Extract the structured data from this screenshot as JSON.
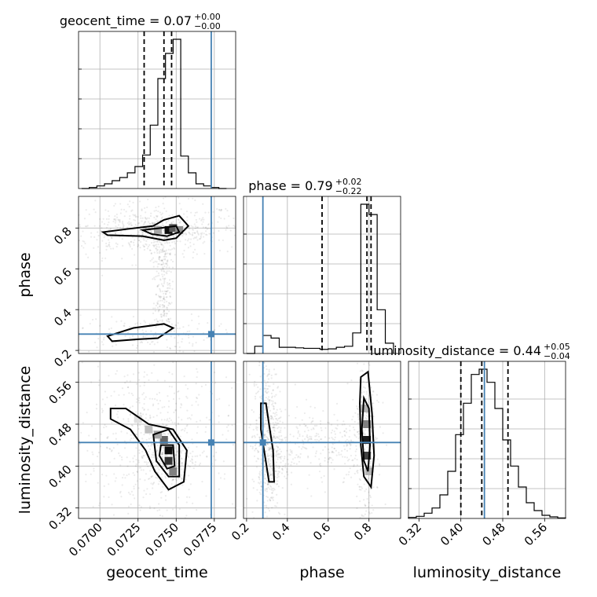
{
  "chart_data": {
    "type": "corner",
    "parameters": [
      "geocent_time",
      "phase",
      "luminosity_distance"
    ],
    "titles": [
      {
        "param": "geocent_time",
        "text": "geocent_time = 0.07",
        "sup": "+0.00",
        "sub": "−0.00"
      },
      {
        "param": "phase",
        "text": "phase = 0.79",
        "sup": "+0.02",
        "sub": "−0.22"
      },
      {
        "param": "luminosity_distance",
        "text": "luminosity_distance = 0.44",
        "sup": "+0.05",
        "sub": "−0.04"
      }
    ],
    "axes": {
      "geocent_time": {
        "range": [
          0.0686,
          0.0789
        ],
        "ticks": [
          0.07,
          0.0725,
          0.075,
          0.0775
        ],
        "tick_labels": [
          "0.0700",
          "0.0725",
          "0.0750",
          "0.0775"
        ]
      },
      "phase": {
        "range": [
          0.185,
          0.955
        ],
        "ticks": [
          0.2,
          0.4,
          0.6,
          0.8
        ],
        "tick_labels": [
          "0.2",
          "0.4",
          "0.6",
          "0.8"
        ]
      },
      "luminosity_distance": {
        "range": [
          0.3,
          0.6
        ],
        "ticks": [
          0.32,
          0.4,
          0.48,
          0.56
        ],
        "tick_labels": [
          "0.32",
          "0.40",
          "0.48",
          "0.56"
        ]
      }
    },
    "truth": {
      "geocent_time": 0.0773,
      "phase": 0.28,
      "luminosity_distance": 0.445
    },
    "quantiles": {
      "geocent_time": [
        0.0729,
        0.0742,
        0.0747
      ],
      "phase": [
        0.57,
        0.79,
        0.81
      ],
      "luminosity_distance": [
        0.4,
        0.44,
        0.49
      ]
    },
    "hist_1d": {
      "geocent_time": {
        "edges": [
          0.0688,
          0.0693,
          0.0698,
          0.0703,
          0.0708,
          0.0713,
          0.0718,
          0.0723,
          0.0728,
          0.0733,
          0.0738,
          0.0743,
          0.0748,
          0.0753,
          0.0758,
          0.0763,
          0.0768,
          0.0773,
          0.0778,
          0.0783
        ],
        "counts": [
          0,
          2,
          5,
          9,
          15,
          21,
          30,
          42,
          64,
          121,
          210,
          258,
          285,
          62,
          30,
          9,
          5,
          2,
          0
        ]
      },
      "phase": {
        "edges": [
          0.2,
          0.24,
          0.28,
          0.32,
          0.36,
          0.4,
          0.44,
          0.48,
          0.52,
          0.56,
          0.6,
          0.64,
          0.68,
          0.72,
          0.76,
          0.8,
          0.84,
          0.88,
          0.92
        ],
        "counts": [
          0,
          14,
          35,
          30,
          12,
          12,
          11,
          10,
          10,
          8,
          9,
          12,
          14,
          40,
          290,
          270,
          85,
          20
        ]
      },
      "luminosity_distance": {
        "edges": [
          0.3,
          0.315,
          0.33,
          0.345,
          0.36,
          0.375,
          0.39,
          0.405,
          0.42,
          0.435,
          0.45,
          0.465,
          0.48,
          0.495,
          0.51,
          0.525,
          0.54,
          0.555,
          0.57,
          0.585,
          0.6
        ],
        "counts": [
          2,
          4,
          10,
          20,
          45,
          90,
          160,
          220,
          275,
          285,
          260,
          210,
          150,
          100,
          60,
          30,
          15,
          6,
          3,
          1
        ]
      }
    },
    "contours_2d": {
      "phase_vs_geocent_time": [
        [
          [
            0.0702,
            0.78
          ],
          [
            0.0718,
            0.795
          ],
          [
            0.0735,
            0.81
          ],
          [
            0.0742,
            0.84
          ],
          [
            0.0752,
            0.86
          ],
          [
            0.0758,
            0.81
          ],
          [
            0.075,
            0.75
          ],
          [
            0.0742,
            0.74
          ],
          [
            0.0728,
            0.76
          ],
          [
            0.0705,
            0.765
          ]
        ],
        [
          [
            0.0728,
            0.79
          ],
          [
            0.074,
            0.8
          ],
          [
            0.075,
            0.81
          ],
          [
            0.0752,
            0.78
          ],
          [
            0.0744,
            0.76
          ],
          [
            0.0734,
            0.77
          ]
        ],
        [
          [
            0.0705,
            0.27
          ],
          [
            0.0722,
            0.31
          ],
          [
            0.0742,
            0.33
          ],
          [
            0.0748,
            0.31
          ],
          [
            0.0738,
            0.26
          ],
          [
            0.0725,
            0.255
          ],
          [
            0.0708,
            0.245
          ]
        ]
      ],
      "luminosity_distance_vs_geocent_time": [
        [
          [
            0.0707,
            0.51
          ],
          [
            0.0717,
            0.51
          ],
          [
            0.0732,
            0.48
          ],
          [
            0.0748,
            0.47
          ],
          [
            0.0757,
            0.43
          ],
          [
            0.0755,
            0.37
          ],
          [
            0.0745,
            0.355
          ],
          [
            0.0736,
            0.39
          ],
          [
            0.073,
            0.43
          ],
          [
            0.072,
            0.47
          ],
          [
            0.0707,
            0.49
          ]
        ],
        [
          [
            0.0735,
            0.46
          ],
          [
            0.0745,
            0.47
          ],
          [
            0.0752,
            0.44
          ],
          [
            0.0752,
            0.38
          ],
          [
            0.0745,
            0.38
          ],
          [
            0.0737,
            0.41
          ]
        ],
        [
          [
            0.074,
            0.44
          ],
          [
            0.0748,
            0.44
          ],
          [
            0.0749,
            0.4
          ],
          [
            0.0744,
            0.395
          ],
          [
            0.0739,
            0.42
          ]
        ]
      ],
      "luminosity_distance_vs_phase": [
        [
          [
            0.27,
            0.52
          ],
          [
            0.295,
            0.52
          ],
          [
            0.31,
            0.48
          ],
          [
            0.33,
            0.43
          ],
          [
            0.335,
            0.37
          ],
          [
            0.31,
            0.37
          ],
          [
            0.29,
            0.42
          ],
          [
            0.27,
            0.47
          ]
        ],
        [
          [
            0.76,
            0.57
          ],
          [
            0.795,
            0.58
          ],
          [
            0.815,
            0.5
          ],
          [
            0.825,
            0.42
          ],
          [
            0.81,
            0.36
          ],
          [
            0.775,
            0.38
          ],
          [
            0.76,
            0.44
          ],
          [
            0.755,
            0.52
          ]
        ],
        [
          [
            0.775,
            0.53
          ],
          [
            0.8,
            0.51
          ],
          [
            0.805,
            0.44
          ],
          [
            0.795,
            0.39
          ],
          [
            0.775,
            0.41
          ],
          [
            0.765,
            0.47
          ]
        ]
      ]
    },
    "density_2d": {
      "phase_vs_geocent_time": [
        [
          0.0745,
          0.79,
          0.95
        ],
        [
          0.0748,
          0.8,
          0.65
        ],
        [
          0.0752,
          0.79,
          0.45
        ],
        [
          0.0738,
          0.79,
          0.35
        ]
      ],
      "luminosity_distance_vs_geocent_time": [
        [
          0.0745,
          0.43,
          0.95
        ],
        [
          0.0745,
          0.41,
          0.8
        ],
        [
          0.0742,
          0.45,
          0.6
        ],
        [
          0.0748,
          0.39,
          0.5
        ],
        [
          0.0738,
          0.46,
          0.35
        ],
        [
          0.0732,
          0.47,
          0.25
        ],
        [
          0.0725,
          0.49,
          0.12
        ]
      ],
      "luminosity_distance_vs_phase": [
        [
          0.79,
          0.45,
          0.9
        ],
        [
          0.79,
          0.42,
          0.75
        ],
        [
          0.79,
          0.48,
          0.5
        ],
        [
          0.78,
          0.51,
          0.3
        ],
        [
          0.8,
          0.39,
          0.3
        ]
      ]
    }
  }
}
